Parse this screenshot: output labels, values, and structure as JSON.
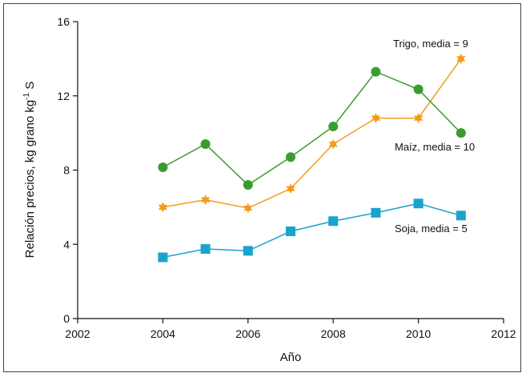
{
  "chart_data": {
    "type": "line",
    "title": "",
    "xlabel": "Año",
    "ylabel_main": "Relación precios, kg grano kg",
    "ylabel_sup": "-1",
    "ylabel_end": " S",
    "xlim": [
      2002,
      2012
    ],
    "ylim": [
      0,
      16
    ],
    "x_ticks": [
      2002,
      2004,
      2006,
      2008,
      2010,
      2012
    ],
    "y_ticks": [
      0,
      4,
      8,
      12,
      16
    ],
    "grid": false,
    "series": [
      {
        "name": "Trigo, media = 9",
        "marker": "star",
        "color": "#f39c1b",
        "x": [
          2004,
          2005,
          2006,
          2007,
          2008,
          2009,
          2010,
          2011
        ],
        "values": [
          6.0,
          6.4,
          5.95,
          7.0,
          9.4,
          10.8,
          10.8,
          14.0
        ]
      },
      {
        "name": "Maíz, media = 10",
        "marker": "circle",
        "color": "#3a9c2f",
        "x": [
          2004,
          2005,
          2006,
          2007,
          2008,
          2009,
          2010,
          2011
        ],
        "values": [
          8.15,
          9.4,
          7.2,
          8.7,
          10.35,
          13.3,
          12.35,
          10.0
        ]
      },
      {
        "name": "Soja, media = 5",
        "marker": "square",
        "color": "#1aa3cc",
        "x": [
          2004,
          2005,
          2006,
          2007,
          2008,
          2009,
          2010,
          2011
        ],
        "values": [
          3.3,
          3.75,
          3.65,
          4.7,
          5.25,
          5.7,
          6.2,
          5.55
        ]
      }
    ]
  }
}
